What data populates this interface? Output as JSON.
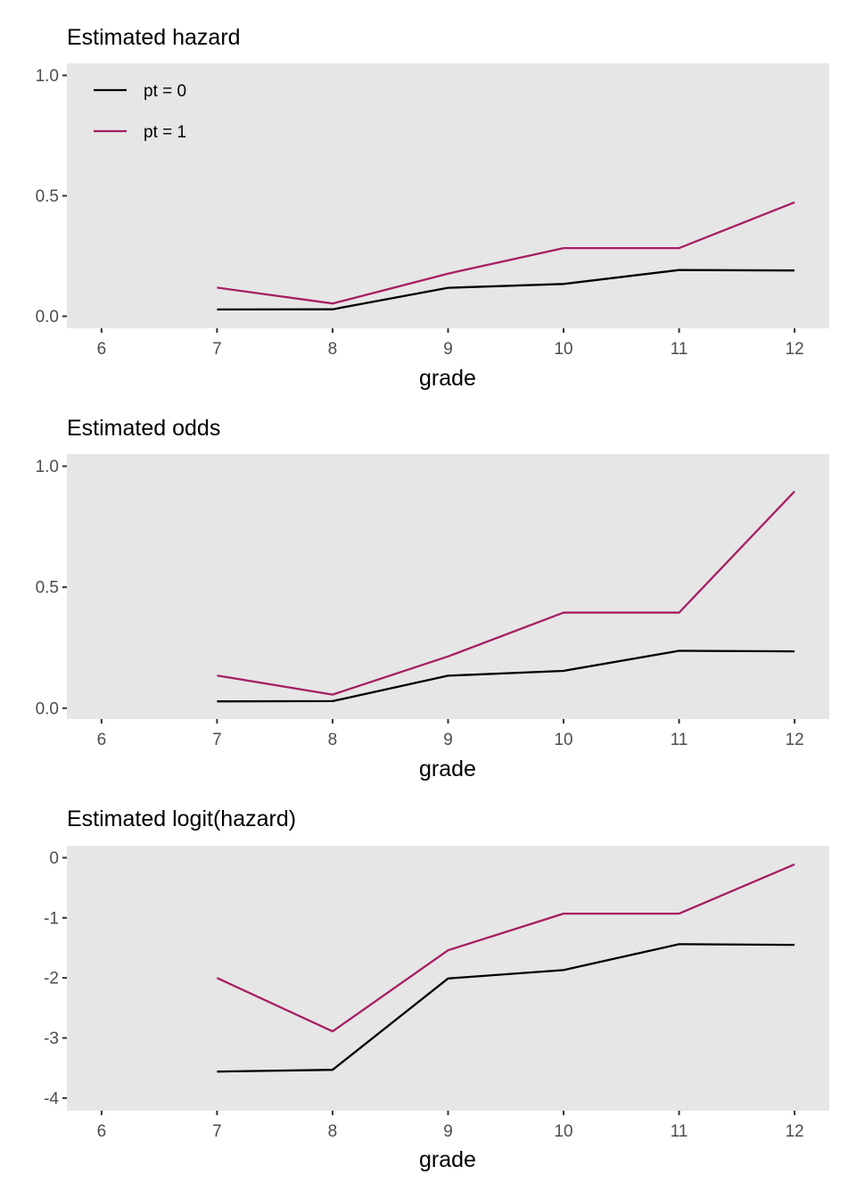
{
  "colors": {
    "panel_bg": "#e6e6e6",
    "tick": "#333333",
    "pt0": "#000000",
    "pt1": "#a61e64"
  },
  "chart_data": [
    {
      "type": "line",
      "title": "Estimated hazard",
      "xlabel": "grade",
      "ylabel": "",
      "x": [
        7,
        8,
        9,
        10,
        11,
        12
      ],
      "xticks": [
        6,
        7,
        8,
        9,
        10,
        11,
        12
      ],
      "xlim": [
        5.7,
        12.3
      ],
      "yticks": [
        0.0,
        0.5,
        1.0
      ],
      "ytick_labels": [
        "0.0",
        "0.5",
        "1.0"
      ],
      "ylim": [
        -0.05,
        1.05
      ],
      "grid": false,
      "legend": {
        "placement": "top-left",
        "entries": [
          "pt = 0",
          "pt = 1"
        ]
      },
      "series": [
        {
          "name": "pt = 0",
          "values": [
            0.028,
            0.029,
            0.118,
            0.134,
            0.192,
            0.19
          ]
        },
        {
          "name": "pt = 1",
          "values": [
            0.119,
            0.053,
            0.177,
            0.283,
            0.283,
            0.473
          ]
        }
      ]
    },
    {
      "type": "line",
      "title": "Estimated odds",
      "xlabel": "grade",
      "ylabel": "",
      "x": [
        7,
        8,
        9,
        10,
        11,
        12
      ],
      "xticks": [
        6,
        7,
        8,
        9,
        10,
        11,
        12
      ],
      "xlim": [
        5.7,
        12.3
      ],
      "yticks": [
        0.0,
        0.5,
        1.0
      ],
      "ytick_labels": [
        "0.0",
        "0.5",
        "1.0"
      ],
      "ylim": [
        -0.045,
        1.05
      ],
      "grid": false,
      "series": [
        {
          "name": "pt = 0",
          "values": [
            0.028,
            0.029,
            0.134,
            0.154,
            0.237,
            0.235
          ]
        },
        {
          "name": "pt = 1",
          "values": [
            0.135,
            0.056,
            0.214,
            0.395,
            0.395,
            0.896
          ]
        }
      ]
    },
    {
      "type": "line",
      "title": "Estimated logit(hazard)",
      "xlabel": "grade",
      "ylabel": "",
      "x": [
        7,
        8,
        9,
        10,
        11,
        12
      ],
      "xticks": [
        6,
        7,
        8,
        9,
        10,
        11,
        12
      ],
      "xlim": [
        5.7,
        12.3
      ],
      "yticks": [
        -4,
        -3,
        -2,
        -1,
        0
      ],
      "ytick_labels": [
        "-4",
        "-3",
        "-2",
        "-1",
        "0"
      ],
      "ylim": [
        -4.21,
        0.2
      ],
      "grid": false,
      "series": [
        {
          "name": "pt = 0",
          "values": [
            -3.56,
            -3.53,
            -2.01,
            -1.87,
            -1.44,
            -1.45
          ]
        },
        {
          "name": "pt = 1",
          "values": [
            -2.0,
            -2.89,
            -1.54,
            -0.93,
            -0.93,
            -0.11
          ]
        }
      ]
    }
  ]
}
